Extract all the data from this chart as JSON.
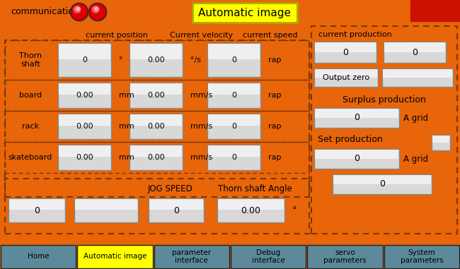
{
  "bg_color": "#E8650A",
  "title_text": "Automatic image",
  "title_bg": "#FFFF00",
  "comm_text": "communication",
  "header_labels": [
    "current position",
    "Current velocity",
    "current speed"
  ],
  "row_data": [
    [
      "Thorn\nshaft",
      "0",
      "°",
      "0.00",
      "°/s",
      "0",
      "rap"
    ],
    [
      "board",
      "0.00",
      "mm",
      "0.00",
      "mm/s",
      "0",
      "rap"
    ],
    [
      "rack",
      "0.00",
      "mm",
      "0.00",
      "mm/s",
      "0",
      "rap"
    ],
    [
      "skateboard",
      "0.00",
      "mm",
      "0.00",
      "mm/s",
      "0",
      "rap"
    ]
  ],
  "jog_label": "JOG SPEED",
  "thorn_angle_label": "Thorn shaft Angle",
  "thorn_angle_val": "0.00",
  "right_panel_title": "current production",
  "output_zero_label": "Output zero",
  "surplus_label": "Surplus production",
  "surplus_unit": "A grid",
  "set_label": "Set production",
  "set_unit": "A grid",
  "btn_labels": [
    "Home",
    "Automatic image",
    "parameter\ninterface",
    "Debug\ninterface",
    "servo\nparameters",
    "System\nparameters"
  ],
  "btn_colors": [
    "#5C8A9A",
    "#FFFF00",
    "#5C8A9A",
    "#5C8A9A",
    "#5C8A9A",
    "#5C8A9A"
  ],
  "box_bg_grad": [
    "#E8E8E8",
    "#C0C0C0"
  ],
  "dashed_color": "#7A3800",
  "top_right_red": "#CC1100"
}
